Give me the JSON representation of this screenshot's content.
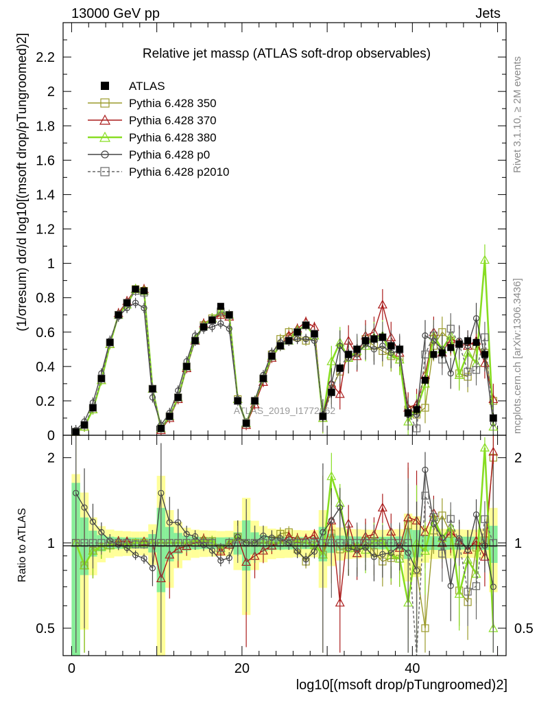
{
  "header": {
    "left": "13000 GeV pp",
    "right": "Jets"
  },
  "side_labels": {
    "rivet": "Rivet 3.1.10, ≥ 2M events",
    "mcplots": "mcplots.cern.ch [arXiv:1306.3436]"
  },
  "watermark": "ATLAS_2019_I1772062",
  "chart_data": [
    {
      "type": "line",
      "title": "Relative jet massρ (ATLAS soft-drop observables)",
      "ylabel": "(1/σresum) dσ/d log10[(msoft drop/pTungroomed)2]",
      "xlabel": "log10[(msoft drop/pTungroomed)2]",
      "xlim": [
        -1,
        51
      ],
      "ylim": [
        0,
        2.4
      ],
      "yticks": [
        "0",
        "0.2",
        "0.4",
        "0.6",
        "0.8",
        "1",
        "1.2",
        "1.4",
        "1.6",
        "1.8",
        "2",
        "2.2"
      ],
      "xticks": [
        "0",
        "20",
        "40"
      ],
      "legend_position": "top-left",
      "x": [
        0.5,
        1.5,
        2.5,
        3.5,
        4.5,
        5.5,
        6.5,
        7.5,
        8.5,
        9.5,
        10.5,
        11.5,
        12.5,
        13.5,
        14.5,
        15.5,
        16.5,
        17.5,
        18.5,
        19.5,
        20.5,
        21.5,
        22.5,
        23.5,
        24.5,
        25.5,
        26.5,
        27.5,
        28.5,
        29.5,
        30.5,
        31.5,
        32.5,
        33.5,
        34.5,
        35.5,
        36.5,
        37.5,
        38.5,
        39.5,
        40.5,
        41.5,
        42.5,
        43.5,
        44.5,
        45.5,
        46.5,
        47.5,
        48.5,
        49.5
      ],
      "series": [
        {
          "name": "ATLAS",
          "color": "#000000",
          "marker": "filled-square",
          "values": [
            0.02,
            0.06,
            0.16,
            0.33,
            0.54,
            0.7,
            0.77,
            0.85,
            0.84,
            0.27,
            0.04,
            0.11,
            0.22,
            0.4,
            0.55,
            0.63,
            0.67,
            0.75,
            0.7,
            0.2,
            0.07,
            0.2,
            0.33,
            0.46,
            0.52,
            0.55,
            0.6,
            0.64,
            0.59,
            0.11,
            0.25,
            0.39,
            0.47,
            0.5,
            0.55,
            0.56,
            0.57,
            0.52,
            0.5,
            0.13,
            0.15,
            0.32,
            0.47,
            0.48,
            0.51,
            0.53,
            0.55,
            0.54,
            0.47,
            0.1
          ]
        },
        {
          "name": "Pythia 6.428 350",
          "color": "#9a9a2a",
          "marker": "open-square",
          "values": [
            0.02,
            0.05,
            0.15,
            0.32,
            0.53,
            0.7,
            0.77,
            0.85,
            0.84,
            0.27,
            0.04,
            0.11,
            0.22,
            0.4,
            0.55,
            0.64,
            0.68,
            0.71,
            0.7,
            0.21,
            0.07,
            0.2,
            0.33,
            0.47,
            0.56,
            0.6,
            0.57,
            0.55,
            0.58,
            0.1,
            0.27,
            0.37,
            0.45,
            0.48,
            0.56,
            0.52,
            0.49,
            0.46,
            0.44,
            0.15,
            0.12,
            0.16,
            0.52,
            0.6,
            0.55,
            0.36,
            0.34,
            0.52,
            0.48,
            0.2
          ]
        },
        {
          "name": "Pythia 6.428 370",
          "color": "#aa1a1a",
          "marker": "open-triangle",
          "values": [
            0.02,
            0.05,
            0.15,
            0.32,
            0.53,
            0.71,
            0.78,
            0.85,
            0.85,
            0.27,
            0.03,
            0.1,
            0.21,
            0.39,
            0.55,
            0.65,
            0.68,
            0.7,
            0.69,
            0.21,
            0.06,
            0.18,
            0.31,
            0.45,
            0.52,
            0.58,
            0.62,
            0.66,
            0.63,
            0.1,
            0.3,
            0.24,
            0.55,
            0.46,
            0.58,
            0.6,
            0.76,
            0.57,
            0.48,
            0.16,
            0.18,
            0.35,
            0.6,
            0.48,
            0.56,
            0.54,
            0.52,
            0.55,
            0.42,
            0.21
          ]
        },
        {
          "name": "Pythia 6.428 380",
          "color": "#88dd22",
          "marker": "open-triangle",
          "values": [
            0.02,
            0.05,
            0.15,
            0.32,
            0.53,
            0.7,
            0.76,
            0.85,
            0.84,
            0.27,
            0.04,
            0.11,
            0.22,
            0.4,
            0.56,
            0.64,
            0.68,
            0.72,
            0.7,
            0.21,
            0.07,
            0.2,
            0.33,
            0.46,
            0.52,
            0.55,
            0.61,
            0.64,
            0.58,
            0.1,
            0.43,
            0.54,
            0.45,
            0.49,
            0.52,
            0.57,
            0.58,
            0.47,
            0.44,
            0.08,
            0.15,
            0.3,
            0.58,
            0.5,
            0.58,
            0.35,
            0.48,
            0.42,
            1.02,
            0.05
          ]
        },
        {
          "name": "Pythia 6.428 p0",
          "color": "#444444",
          "marker": "open-circle",
          "values": [
            0.03,
            0.08,
            0.19,
            0.36,
            0.55,
            0.69,
            0.74,
            0.77,
            0.74,
            0.22,
            0.06,
            0.13,
            0.26,
            0.43,
            0.58,
            0.62,
            0.63,
            0.65,
            0.62,
            0.21,
            0.07,
            0.2,
            0.35,
            0.48,
            0.54,
            0.55,
            0.56,
            0.56,
            0.55,
            0.12,
            0.3,
            0.52,
            0.45,
            0.47,
            0.53,
            0.5,
            0.52,
            0.48,
            0.49,
            0.12,
            0.12,
            0.58,
            0.55,
            0.5,
            0.36,
            0.55,
            0.52,
            0.68,
            0.46,
            0.07
          ]
        },
        {
          "name": "Pythia 6.428 p2010",
          "color": "#666666",
          "marker": "open-square-dashed",
          "values": [
            0.02,
            0.06,
            0.16,
            0.33,
            0.54,
            0.7,
            0.77,
            0.84,
            0.83,
            0.27,
            0.04,
            0.11,
            0.22,
            0.4,
            0.55,
            0.63,
            0.67,
            0.72,
            0.7,
            0.2,
            0.07,
            0.2,
            0.33,
            0.46,
            0.52,
            0.55,
            0.6,
            0.64,
            0.59,
            0.11,
            0.25,
            0.39,
            0.47,
            0.5,
            0.55,
            0.56,
            0.57,
            0.52,
            0.5,
            0.13,
            0.04,
            0.47,
            0.58,
            0.44,
            0.62,
            0.53,
            0.37,
            0.38,
            0.57,
            0.1
          ]
        }
      ]
    },
    {
      "type": "line",
      "title": "",
      "ylabel": "Ratio to ATLAS",
      "xlabel": "log10[(msoft drop/pTungroomed)2]",
      "ylim": [
        0.4,
        2.4
      ],
      "log_y": true,
      "yticks": [
        "0.5",
        "1",
        "2"
      ],
      "reference_line": 1
    }
  ]
}
